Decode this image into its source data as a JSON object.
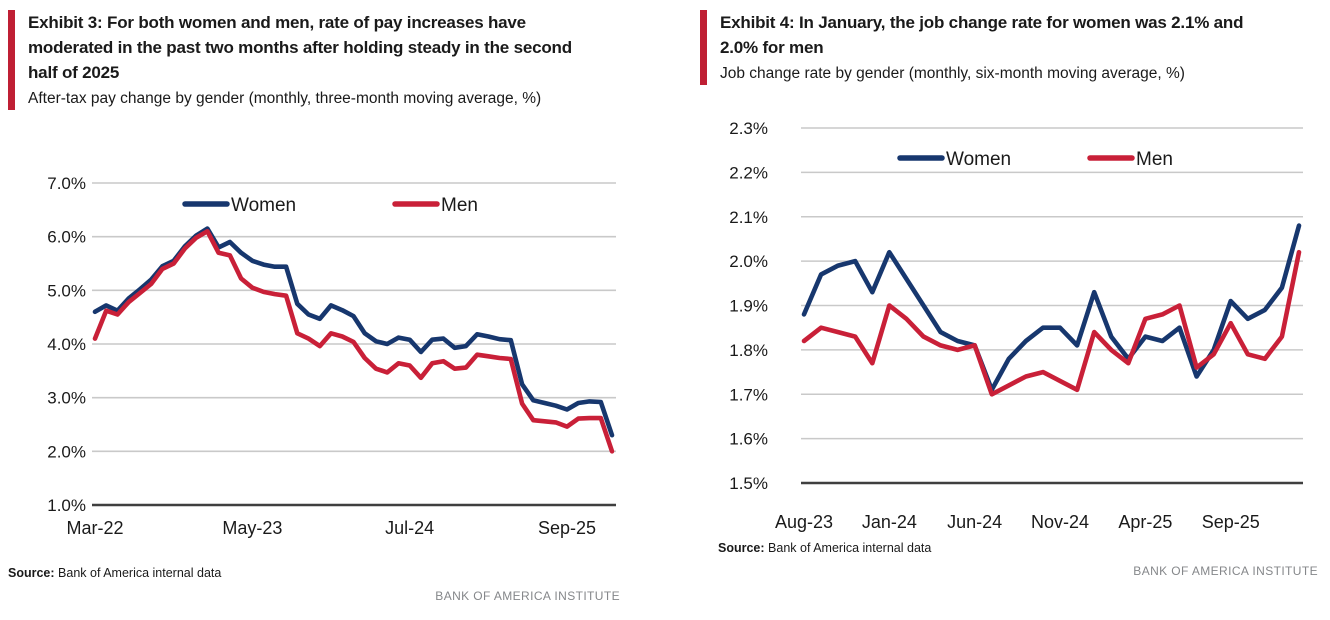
{
  "colors": {
    "women": "#17376e",
    "men": "#c92038",
    "accent_bar": "#bf1f34",
    "gridline": "#c9c9c9",
    "axis": "#3f3f3f",
    "tick_text": "#1a1a1a",
    "footer_gray": "#85878a"
  },
  "panels": [
    {
      "exhibit_title": "Exhibit 3: For both women and men, rate of pay increases have moderated in the past two months after holding steady in the second half of 2025",
      "subtitle": "After-tax pay change by gender (monthly, three-month moving average, %)",
      "source_label": "Source:",
      "source_text": "Bank of America internal data",
      "footer": "BANK OF AMERICA INSTITUTE"
    },
    {
      "exhibit_title": "Exhibit 4: In January, the job change rate for women was 2.1% and 2.0% for men",
      "subtitle": "Job change rate by gender (monthly, six-month moving average, %)",
      "source_label": "Source:",
      "source_text": "Bank of America internal data",
      "footer": "BANK OF AMERICA INSTITUTE"
    }
  ],
  "chart_data": [
    {
      "name": "after_tax_pay_change_by_gender",
      "type": "line",
      "grid": "horizontal",
      "legend_position": "top-inside",
      "ylim": [
        1.0,
        7.0
      ],
      "ytick_step": 1.0,
      "ytick_format": "percent1",
      "categories": [
        "Mar-22",
        "Apr-22",
        "May-22",
        "Jun-22",
        "Jul-22",
        "Aug-22",
        "Sep-22",
        "Oct-22",
        "Nov-22",
        "Dec-22",
        "Jan-23",
        "Feb-23",
        "Mar-23",
        "Apr-23",
        "May-23",
        "Jun-23",
        "Jul-23",
        "Aug-23",
        "Sep-23",
        "Oct-23",
        "Nov-23",
        "Dec-23",
        "Jan-24",
        "Feb-24",
        "Mar-24",
        "Apr-24",
        "May-24",
        "Jun-24",
        "Jul-24",
        "Aug-24",
        "Sep-24",
        "Oct-24",
        "Nov-24",
        "Dec-24",
        "Jan-25",
        "Feb-25",
        "Mar-25",
        "Apr-25",
        "May-25",
        "Jun-25",
        "Jul-25",
        "Aug-25",
        "Sep-25",
        "Oct-25",
        "Nov-25",
        "Dec-25",
        "Jan-26"
      ],
      "xticks": [
        {
          "label": "Mar-22",
          "index": 0
        },
        {
          "label": "May-23",
          "index": 14
        },
        {
          "label": "Jul-24",
          "index": 28
        },
        {
          "label": "Sep-25",
          "index": 42
        }
      ],
      "series": [
        {
          "name": "Women",
          "color_key": "women",
          "values": [
            4.6,
            4.72,
            4.62,
            4.85,
            5.02,
            5.2,
            5.45,
            5.55,
            5.82,
            6.02,
            6.15,
            5.8,
            5.9,
            5.7,
            5.55,
            5.48,
            5.44,
            5.44,
            4.75,
            4.55,
            4.47,
            4.72,
            4.63,
            4.52,
            4.2,
            4.05,
            4.0,
            4.12,
            4.08,
            3.85,
            4.08,
            4.1,
            3.93,
            3.96,
            4.18,
            4.14,
            4.09,
            4.07,
            3.25,
            2.95,
            2.9,
            2.85,
            2.78,
            2.9,
            2.93,
            2.92,
            2.3
          ]
        },
        {
          "name": "Men",
          "color_key": "men",
          "values": [
            4.1,
            4.62,
            4.55,
            4.78,
            4.95,
            5.12,
            5.4,
            5.5,
            5.78,
            5.98,
            6.1,
            5.7,
            5.65,
            5.22,
            5.05,
            4.97,
            4.93,
            4.9,
            4.2,
            4.1,
            3.96,
            4.2,
            4.14,
            4.04,
            3.74,
            3.54,
            3.47,
            3.64,
            3.6,
            3.37,
            3.64,
            3.68,
            3.54,
            3.56,
            3.8,
            3.77,
            3.74,
            3.72,
            2.89,
            2.58,
            2.56,
            2.54,
            2.46,
            2.61,
            2.62,
            2.62,
            2.0
          ]
        }
      ]
    },
    {
      "name": "job_change_rate_by_gender",
      "type": "line",
      "grid": "horizontal",
      "legend_position": "top-inside",
      "ylim": [
        1.5,
        2.3
      ],
      "ytick_step": 0.1,
      "ytick_format": "percent1",
      "categories": [
        "Aug-23",
        "Sep-23",
        "Oct-23",
        "Nov-23",
        "Dec-23",
        "Jan-24",
        "Feb-24",
        "Mar-24",
        "Apr-24",
        "May-24",
        "Jun-24",
        "Jul-24",
        "Aug-24",
        "Sep-24",
        "Oct-24",
        "Nov-24",
        "Dec-24",
        "Jan-25",
        "Feb-25",
        "Mar-25",
        "Apr-25",
        "May-25",
        "Jun-25",
        "Jul-25",
        "Aug-25",
        "Sep-25",
        "Oct-25",
        "Nov-25",
        "Dec-25",
        "Jan-26"
      ],
      "xticks": [
        {
          "label": "Aug-23",
          "index": 0
        },
        {
          "label": "Jan-24",
          "index": 5
        },
        {
          "label": "Jun-24",
          "index": 10
        },
        {
          "label": "Nov-24",
          "index": 15
        },
        {
          "label": "Apr-25",
          "index": 20
        },
        {
          "label": "Sep-25",
          "index": 25
        }
      ],
      "series": [
        {
          "name": "Women",
          "color_key": "women",
          "values": [
            1.88,
            1.97,
            1.99,
            2.0,
            1.93,
            2.02,
            1.96,
            1.9,
            1.84,
            1.82,
            1.81,
            1.71,
            1.78,
            1.82,
            1.85,
            1.85,
            1.81,
            1.93,
            1.83,
            1.78,
            1.83,
            1.82,
            1.85,
            1.74,
            1.8,
            1.91,
            1.87,
            1.89,
            1.94,
            2.08
          ]
        },
        {
          "name": "Men",
          "color_key": "men",
          "values": [
            1.82,
            1.85,
            1.84,
            1.83,
            1.77,
            1.9,
            1.87,
            1.83,
            1.81,
            1.8,
            1.81,
            1.7,
            1.72,
            1.74,
            1.75,
            1.73,
            1.71,
            1.84,
            1.8,
            1.77,
            1.87,
            1.88,
            1.9,
            1.76,
            1.79,
            1.86,
            1.79,
            1.78,
            1.83,
            2.02
          ]
        }
      ]
    }
  ]
}
